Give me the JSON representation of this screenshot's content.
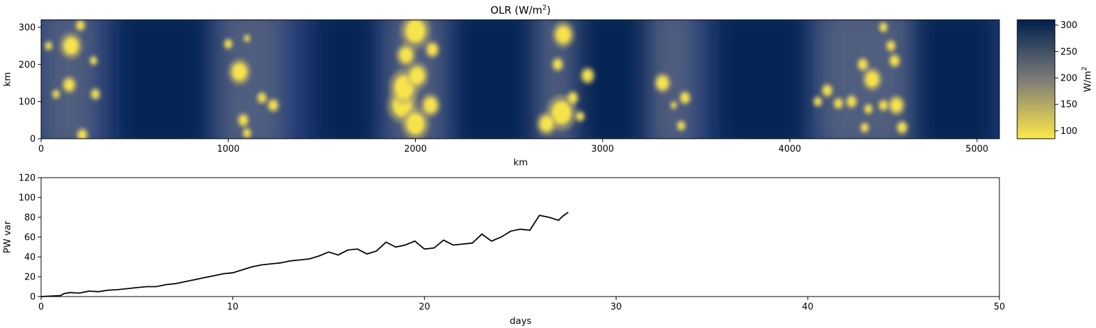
{
  "chart_data": [
    {
      "type": "heatmap",
      "title": "OLR (W/m",
      "title_sup": "2",
      "title_close": ")",
      "xlabel": "km",
      "ylabel": "km",
      "xlim": [
        0,
        5120
      ],
      "ylim": [
        0,
        320
      ],
      "xticks": [
        "0",
        "1000",
        "2000",
        "3000",
        "4000",
        "5000"
      ],
      "yticks": [
        "0",
        "100",
        "200",
        "300"
      ],
      "colorbar": {
        "label": "W/m",
        "label_sup": "2",
        "range": [
          85,
          310
        ],
        "ticks": [
          "100",
          "150",
          "200",
          "250",
          "300"
        ],
        "colormap": "cividis_r",
        "color_low": "#fde84a",
        "color_mid": "#7c7b78",
        "color_high": "#00204d"
      },
      "clear_bands_km": [
        [
          400,
          900
        ],
        [
          1450,
          1800
        ],
        [
          2200,
          2650
        ],
        [
          2850,
          3250
        ],
        [
          3600,
          4100
        ],
        [
          4650,
          5100
        ]
      ],
      "convective_bands_km": [
        [
          0,
          300
        ],
        [
          950,
          1300
        ],
        [
          1850,
          2150
        ],
        [
          2650,
          2850
        ],
        [
          3250,
          3500
        ],
        [
          4150,
          4650
        ]
      ],
      "convective_cells": [
        {
          "x": 210,
          "y": 305,
          "r": 22
        },
        {
          "x": 160,
          "y": 250,
          "r": 45
        },
        {
          "x": 280,
          "y": 210,
          "r": 18
        },
        {
          "x": 150,
          "y": 145,
          "r": 30
        },
        {
          "x": 290,
          "y": 120,
          "r": 22
        },
        {
          "x": 80,
          "y": 120,
          "r": 18
        },
        {
          "x": 40,
          "y": 250,
          "r": 18
        },
        {
          "x": 220,
          "y": 10,
          "r": 25
        },
        {
          "x": 1000,
          "y": 255,
          "r": 20
        },
        {
          "x": 1080,
          "y": 50,
          "r": 25
        },
        {
          "x": 1100,
          "y": 15,
          "r": 20
        },
        {
          "x": 1180,
          "y": 110,
          "r": 22
        },
        {
          "x": 1060,
          "y": 180,
          "r": 45
        },
        {
          "x": 1100,
          "y": 270,
          "r": 15
        },
        {
          "x": 1240,
          "y": 90,
          "r": 25
        },
        {
          "x": 1930,
          "y": 90,
          "r": 60
        },
        {
          "x": 2000,
          "y": 40,
          "r": 55
        },
        {
          "x": 1940,
          "y": 140,
          "r": 60
        },
        {
          "x": 2010,
          "y": 170,
          "r": 45
        },
        {
          "x": 2000,
          "y": 290,
          "r": 60
        },
        {
          "x": 1950,
          "y": 225,
          "r": 40
        },
        {
          "x": 2080,
          "y": 90,
          "r": 40
        },
        {
          "x": 2090,
          "y": 240,
          "r": 30
        },
        {
          "x": 2790,
          "y": 280,
          "r": 45
        },
        {
          "x": 2780,
          "y": 70,
          "r": 60
        },
        {
          "x": 2700,
          "y": 40,
          "r": 40
        },
        {
          "x": 2840,
          "y": 110,
          "r": 25
        },
        {
          "x": 2920,
          "y": 170,
          "r": 30
        },
        {
          "x": 2760,
          "y": 200,
          "r": 25
        },
        {
          "x": 2880,
          "y": 60,
          "r": 20
        },
        {
          "x": 3440,
          "y": 110,
          "r": 25
        },
        {
          "x": 3320,
          "y": 150,
          "r": 35
        },
        {
          "x": 3420,
          "y": 35,
          "r": 20
        },
        {
          "x": 3380,
          "y": 90,
          "r": 15
        },
        {
          "x": 4440,
          "y": 160,
          "r": 40
        },
        {
          "x": 4570,
          "y": 90,
          "r": 35
        },
        {
          "x": 4500,
          "y": 90,
          "r": 22
        },
        {
          "x": 4420,
          "y": 80,
          "r": 20
        },
        {
          "x": 4560,
          "y": 210,
          "r": 25
        },
        {
          "x": 4540,
          "y": 250,
          "r": 22
        },
        {
          "x": 4330,
          "y": 100,
          "r": 25
        },
        {
          "x": 4260,
          "y": 95,
          "r": 22
        },
        {
          "x": 4400,
          "y": 30,
          "r": 20
        },
        {
          "x": 4390,
          "y": 200,
          "r": 25
        },
        {
          "x": 4500,
          "y": 300,
          "r": 20
        },
        {
          "x": 4600,
          "y": 30,
          "r": 25
        },
        {
          "x": 4200,
          "y": 130,
          "r": 25
        },
        {
          "x": 4150,
          "y": 100,
          "r": 20
        }
      ]
    },
    {
      "type": "line",
      "xlabel": "days",
      "ylabel": "PW var",
      "xlim": [
        0,
        50
      ],
      "ylim": [
        0,
        120
      ],
      "xticks": [
        "0",
        "10",
        "20",
        "30",
        "40",
        "50"
      ],
      "yticks": [
        "0",
        "20",
        "40",
        "60",
        "80",
        "100",
        "120"
      ],
      "series": [
        {
          "color": "#000000",
          "x": [
            0,
            0.5,
            1.0,
            1.2,
            1.5,
            2.0,
            2.5,
            3.0,
            3.5,
            4.0,
            4.5,
            5.0,
            5.5,
            6.0,
            6.5,
            7.0,
            7.5,
            8.0,
            8.5,
            9.0,
            9.5,
            10.0,
            10.5,
            11.0,
            11.5,
            12.0,
            12.5,
            13.0,
            13.5,
            14.0,
            14.5,
            15.0,
            15.5,
            16.0,
            16.5,
            17.0,
            17.5,
            18.0,
            18.5,
            19.0,
            19.5,
            20.0,
            20.5,
            21.0,
            21.5,
            22.0,
            22.5,
            23.0,
            23.5,
            24.0,
            24.5,
            25.0,
            25.5,
            26.0,
            26.5,
            27.0,
            27.2,
            27.5
          ],
          "y": [
            0,
            0.5,
            1,
            3,
            4,
            3.5,
            5.5,
            5,
            6.5,
            7,
            8,
            9,
            10,
            10,
            12,
            13,
            15,
            17,
            19,
            21,
            23,
            24,
            27,
            30,
            32,
            33,
            34,
            36,
            37,
            38,
            41,
            45,
            42,
            47,
            48,
            43,
            46,
            55,
            50,
            52,
            56,
            48,
            49,
            57,
            52,
            53,
            54,
            63,
            56,
            60,
            66,
            68,
            67,
            82,
            80,
            77,
            81,
            85
          ]
        }
      ]
    }
  ]
}
